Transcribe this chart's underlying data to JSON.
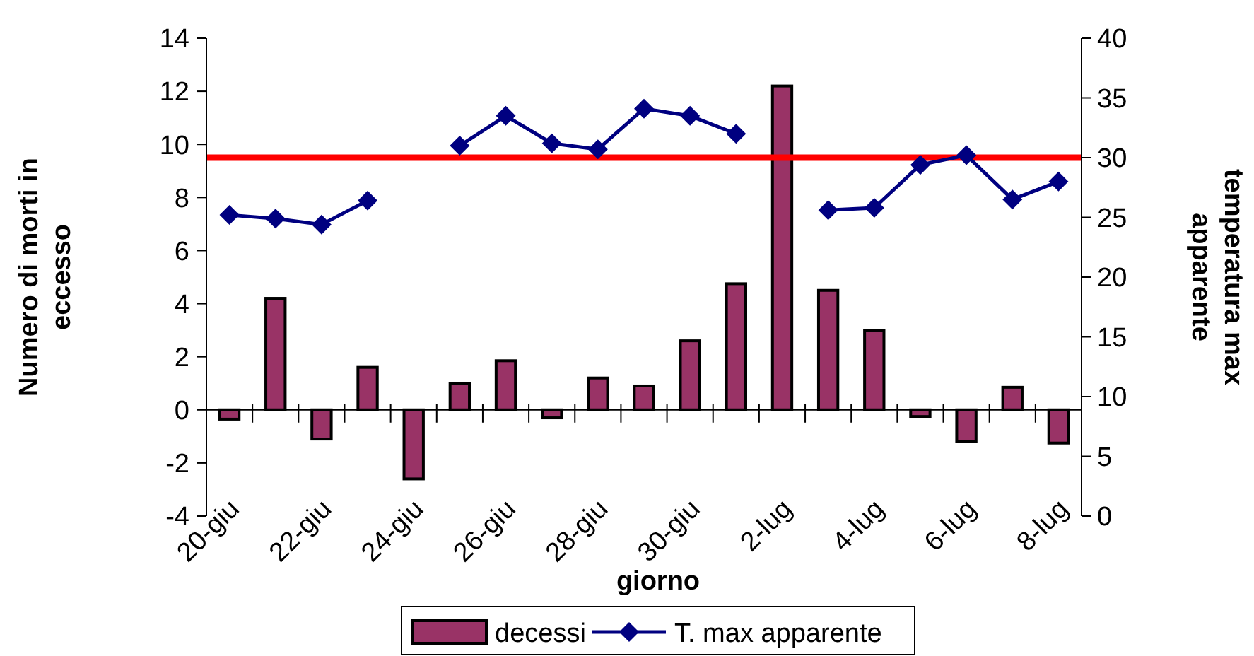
{
  "chart_data": {
    "type": "bar",
    "xlabel": "giorno",
    "ylabel": "Numero di morti in eccesso",
    "y2label": "temperatura max apparente",
    "categories": [
      "20-giu",
      null,
      "22-giu",
      null,
      "24-giu",
      null,
      "26-giu",
      null,
      "28-giu",
      null,
      "30-giu",
      null,
      "2-lug",
      null,
      "4-lug",
      null,
      "6-lug",
      null,
      "8-lug"
    ],
    "series": [
      {
        "name": "decessi",
        "color": "#993366",
        "values": [
          -0.35,
          4.2,
          -1.1,
          1.6,
          -2.6,
          1.0,
          1.85,
          -0.3,
          1.2,
          0.9,
          2.6,
          4.75,
          12.2,
          4.5,
          3.0,
          -0.25,
          -1.2,
          0.85,
          -1.25
        ]
      },
      {
        "name": "T. max apparente",
        "type": "line",
        "axis": "y2",
        "color": "#000080",
        "marker": "diamond",
        "values": [
          25.2,
          24.9,
          24.4,
          26.4,
          null,
          31.0,
          33.5,
          31.2,
          30.7,
          34.1,
          33.5,
          32.0,
          null,
          25.6,
          25.8,
          29.4,
          30.2,
          26.5,
          28.0
        ]
      }
    ],
    "ylim": [
      -4,
      14
    ],
    "yticks": [
      -4,
      -2,
      0,
      2,
      4,
      6,
      8,
      10,
      12,
      14
    ],
    "y2lim": [
      0,
      40
    ],
    "y2ticks": [
      0,
      5,
      10,
      15,
      20,
      25,
      30,
      35,
      40
    ],
    "ref_lines": [
      {
        "axis": "y2",
        "value": 30,
        "color": "#ff0000"
      }
    ],
    "grid": false,
    "legend": "bottom"
  }
}
